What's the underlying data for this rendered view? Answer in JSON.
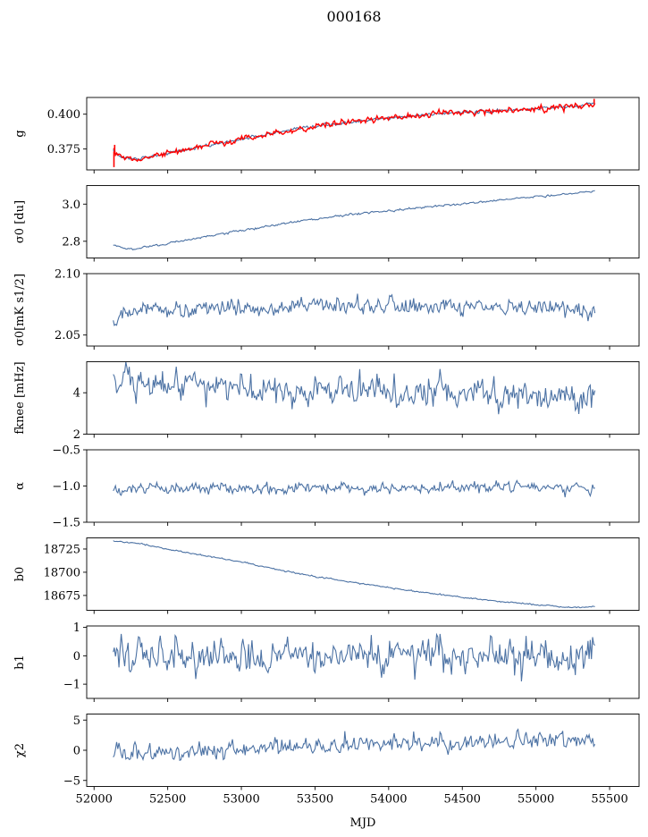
{
  "figure": {
    "title": "000168",
    "xlabel": "MJD",
    "xlim": [
      51950,
      55700
    ],
    "xticks": [
      52000,
      52500,
      53000,
      53500,
      54000,
      54500,
      55000,
      55500
    ],
    "data_x_range": [
      52130,
      55400
    ]
  },
  "chart_data": [
    {
      "type": "line",
      "ylabel": "g",
      "ylim": [
        0.36,
        0.412
      ],
      "yticks": [
        0.375,
        0.4
      ],
      "ytick_labels": [
        "0.375",
        "0.400"
      ],
      "series": [
        {
          "name": "",
          "color": "#4c72a4",
          "noise": 0.0006,
          "trend": {
            "x": [
              52130,
              52150,
              52200,
              52280,
              52400,
              52600,
              52900,
              53200,
              53500,
              53800,
              54100,
              54400,
              54700,
              55000,
              55300,
              55400
            ],
            "y": [
              0.374,
              0.371,
              0.369,
              0.368,
              0.37,
              0.374,
              0.38,
              0.386,
              0.391,
              0.395,
              0.398,
              0.401,
              0.402,
              0.404,
              0.406,
              0.408
            ]
          }
        },
        {
          "name": "",
          "color": "#ff0000",
          "noise": 0.0012,
          "trend": {
            "x": [
              52130,
              52150,
              52200,
              52280,
              52400,
              52600,
              52900,
              53200,
              53500,
              53800,
              54100,
              54400,
              54700,
              55000,
              55300,
              55400
            ],
            "y": [
              0.374,
              0.371,
              0.369,
              0.368,
              0.37,
              0.374,
              0.38,
              0.386,
              0.391,
              0.395,
              0.398,
              0.401,
              0.402,
              0.404,
              0.406,
              0.408
            ]
          }
        }
      ]
    },
    {
      "type": "line",
      "ylabel": "σ0 [du]",
      "ylim": [
        2.71,
        3.1
      ],
      "yticks": [
        2.8,
        3.0
      ],
      "ytick_labels": [
        "2.8",
        "3.0"
      ],
      "series": [
        {
          "name": "",
          "color": "#4c72a4",
          "noise": 0.003,
          "trend": {
            "x": [
              52130,
              52200,
              52300,
              52500,
              52800,
              53100,
              53400,
              53800,
              54200,
              54600,
              55000,
              55400
            ],
            "y": [
              2.78,
              2.76,
              2.76,
              2.79,
              2.83,
              2.87,
              2.91,
              2.95,
              2.98,
              3.01,
              3.04,
              3.07
            ]
          }
        }
      ]
    },
    {
      "type": "line",
      "ylabel": "σ0[mK s1/2]",
      "ylim": [
        2.041,
        2.1
      ],
      "yticks": [
        2.05,
        2.1
      ],
      "ytick_labels": [
        "2.05",
        "2.10"
      ],
      "series": [
        {
          "name": "",
          "color": "#4c72a4",
          "noise": 0.0035,
          "trend": {
            "x": [
              52130,
              52300,
              52800,
              53400,
              54000,
              54600,
              55400
            ],
            "y": [
              2.063,
              2.07,
              2.072,
              2.073,
              2.074,
              2.072,
              2.07
            ]
          }
        }
      ]
    },
    {
      "type": "line",
      "ylabel": "fknee [mHz]",
      "ylim": [
        2.0,
        5.5
      ],
      "yticks": [
        2,
        4
      ],
      "ytick_labels": [
        "2",
        "4"
      ],
      "series": [
        {
          "name": "",
          "color": "#4c72a4",
          "noise": 0.38,
          "trend": {
            "x": [
              52130,
              52300,
              52600,
              53000,
              53500,
              54000,
              54500,
              55000,
              55400
            ],
            "y": [
              4.6,
              4.5,
              4.3,
              4.2,
              4.1,
              4.1,
              4.1,
              4.0,
              3.9
            ]
          }
        }
      ]
    },
    {
      "type": "line",
      "ylabel": "α",
      "ylim": [
        -1.5,
        -0.5
      ],
      "yticks": [
        -1.5,
        -1.0,
        -0.5
      ],
      "ytick_labels": [
        "−1.5",
        "−1.0",
        "−0.5"
      ],
      "series": [
        {
          "name": "",
          "color": "#4c72a4",
          "noise": 0.04,
          "trend": {
            "x": [
              52130,
              53000,
              54000,
              55400
            ],
            "y": [
              -1.04,
              -1.03,
              -1.02,
              -1.02
            ]
          }
        }
      ]
    },
    {
      "type": "line",
      "ylabel": "b0",
      "ylim": [
        18659,
        18737
      ],
      "yticks": [
        18675,
        18700,
        18725
      ],
      "ytick_labels": [
        "18675",
        "18700",
        "18725"
      ],
      "series": [
        {
          "name": "",
          "color": "#4c72a4",
          "noise": 0.4,
          "trend": {
            "x": [
              52130,
              52300,
              52600,
              53000,
              53400,
              53800,
              54200,
              54600,
              55000,
              55250,
              55400
            ],
            "y": [
              18734,
              18731,
              18722,
              18711,
              18698,
              18688,
              18679,
              18671,
              18665,
              18662,
              18663
            ]
          }
        }
      ]
    },
    {
      "type": "line",
      "ylabel": "b1",
      "ylim": [
        -1.5,
        1.05
      ],
      "yticks": [
        -1,
        0,
        1
      ],
      "ytick_labels": [
        "−1",
        "0",
        "1"
      ],
      "series": [
        {
          "name": "",
          "color": "#4c72a4",
          "noise": 0.33,
          "trend": {
            "x": [
              52130,
              55400
            ],
            "y": [
              -0.05,
              -0.05
            ]
          }
        }
      ]
    },
    {
      "type": "line",
      "ylabel": "χ2",
      "ylim": [
        -6,
        6
      ],
      "yticks": [
        -5,
        0,
        5
      ],
      "ytick_labels": [
        "−5",
        "0",
        "5"
      ],
      "series": [
        {
          "name": "",
          "color": "#4c72a4",
          "noise": 0.75,
          "trend": {
            "x": [
              52130,
              53000,
              54000,
              55000,
              55400
            ],
            "y": [
              -0.6,
              0.2,
              1.0,
              1.7,
              2.1
            ]
          }
        }
      ]
    }
  ]
}
